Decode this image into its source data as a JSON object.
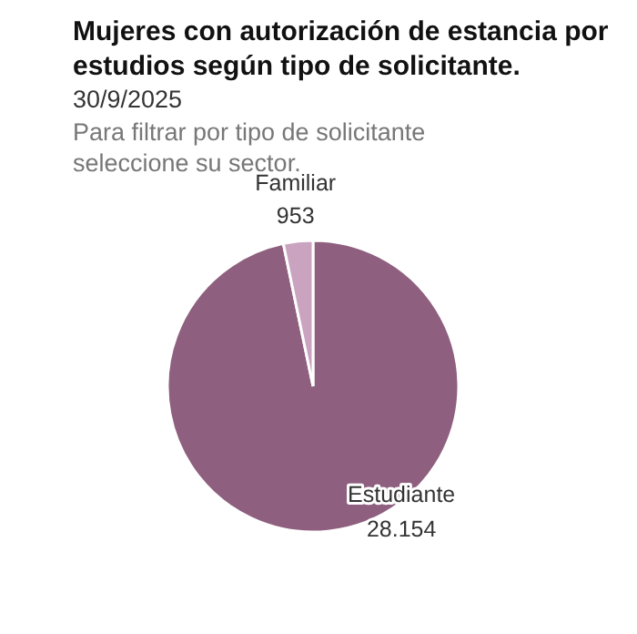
{
  "chart_data": {
    "type": "pie",
    "title": "Mujeres con autorización de estancia por estudios según tipo de solicitante.",
    "subtitle": "30/9/2025",
    "annotations": [
      "Para filtrar por tipo de solicitante seleccione su sector."
    ],
    "categories": [
      "Estudiante",
      "Familiar"
    ],
    "values": [
      28154,
      953
    ],
    "value_labels": [
      "28.154",
      "953"
    ],
    "colors": [
      "#8e5f7e",
      "#c9a3c0"
    ]
  }
}
